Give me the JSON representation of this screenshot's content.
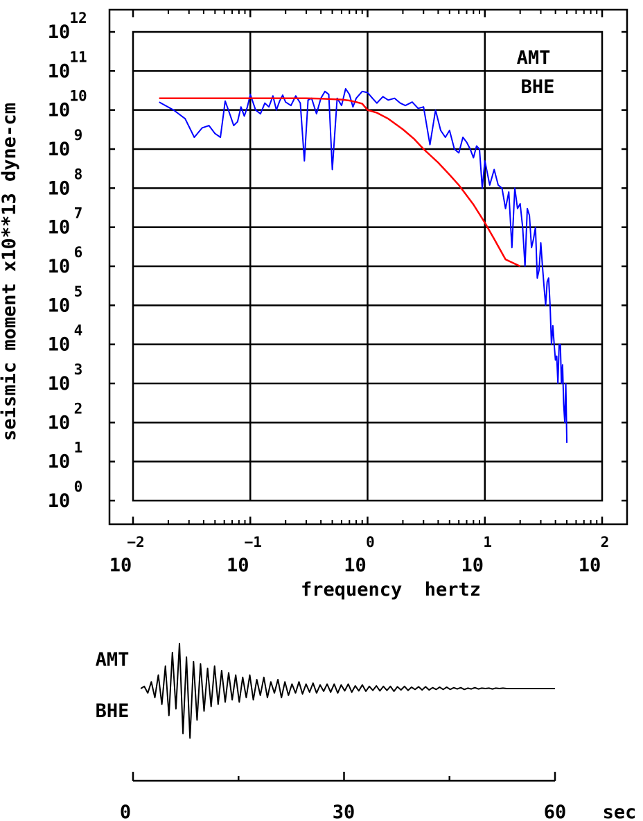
{
  "chart_data": [
    {
      "type": "line",
      "xscale": "log",
      "yscale": "log",
      "xlabel": "frequency  hertz",
      "ylabel": "seismic moment x10**13 dyne-cm",
      "xlim": [
        0.01,
        100
      ],
      "ylim": [
        1,
        1000000000000
      ],
      "grid": true,
      "annotations": [
        "AMT",
        "BHE"
      ],
      "x_ticks": [
        {
          "base": "10",
          "exp": "−2"
        },
        {
          "base": "10",
          "exp": "−1"
        },
        {
          "base": "10",
          "exp": "0"
        },
        {
          "base": "10",
          "exp": "1"
        },
        {
          "base": "10",
          "exp": "2"
        }
      ],
      "y_ticks": [
        {
          "base": "10",
          "exp": "0"
        },
        {
          "base": "10",
          "exp": "1"
        },
        {
          "base": "10",
          "exp": "2"
        },
        {
          "base": "10",
          "exp": "3"
        },
        {
          "base": "10",
          "exp": "4"
        },
        {
          "base": "10",
          "exp": "5"
        },
        {
          "base": "10",
          "exp": "6"
        },
        {
          "base": "10",
          "exp": "7"
        },
        {
          "base": "10",
          "exp": "8"
        },
        {
          "base": "10",
          "exp": "9"
        },
        {
          "base": "10",
          "exp": "10"
        },
        {
          "base": "10",
          "exp": "11"
        },
        {
          "base": "10",
          "exp": "12"
        }
      ],
      "series": [
        {
          "color": "#0000ff",
          "x": [
            0.0167,
            0.0222,
            0.0278,
            0.0333,
            0.0389,
            0.0444,
            0.05,
            0.0556,
            0.0611,
            0.0667,
            0.0722,
            0.0778,
            0.0833,
            0.0889,
            0.0944,
            0.1,
            0.111,
            0.122,
            0.133,
            0.144,
            0.156,
            0.167,
            0.178,
            0.189,
            0.2,
            0.222,
            0.244,
            0.267,
            0.289,
            0.311,
            0.333,
            0.367,
            0.4,
            0.433,
            0.467,
            0.5,
            0.55,
            0.6,
            0.65,
            0.7,
            0.75,
            0.8,
            0.9,
            1.0,
            1.1,
            1.2,
            1.35,
            1.5,
            1.7,
            1.9,
            2.1,
            2.4,
            2.7,
            3.0,
            3.4,
            3.8,
            4.2,
            4.6,
            5.0,
            5.5,
            6.0,
            6.5,
            7.0,
            7.5,
            8.0,
            8.5,
            9.0,
            9.5,
            10.0,
            11.0,
            12.0,
            13.0,
            14.0,
            15.0,
            16.0,
            17.0,
            18.0,
            19.0,
            20.0,
            21.0,
            22.0,
            23.0,
            24.0,
            25.0,
            26.0,
            27.0,
            28.0,
            29.0,
            30.0,
            31.0,
            32.0,
            33.0,
            34.0,
            35.0,
            36.0,
            37.0,
            38.0,
            39.0,
            40.0,
            41.0,
            42.0,
            43.0,
            44.0,
            45.0,
            46.0,
            47.0,
            48.0,
            49.0,
            50.0
          ],
          "y": [
            16000000000.0,
            10000000000.0,
            6000000000.0,
            2000000000.0,
            3500000000.0,
            4000000000.0,
            2500000000.0,
            2000000000.0,
            17000000000.0,
            8000000000.0,
            4000000000.0,
            5000000000.0,
            12000000000.0,
            7000000000.0,
            12000000000.0,
            25000000000.0,
            10000000000.0,
            8000000000.0,
            15000000000.0,
            12000000000.0,
            23000000000.0,
            10000000000.0,
            17000000000.0,
            24000000000.0,
            16000000000.0,
            13000000000.0,
            23000000000.0,
            15000000000.0,
            500000000.0,
            18000000000.0,
            20000000000.0,
            8000000000.0,
            20000000000.0,
            30000000000.0,
            25000000000.0,
            300000000.0,
            20000000000.0,
            13000000000.0,
            35000000000.0,
            25000000000.0,
            12000000000.0,
            20000000000.0,
            30000000000.0,
            28000000000.0,
            20000000000.0,
            15000000000.0,
            22000000000.0,
            18000000000.0,
            20000000000.0,
            15000000000.0,
            13000000000.0,
            16000000000.0,
            11000000000.0,
            12000000000.0,
            1300000000.0,
            10000000000.0,
            3000000000.0,
            2000000000.0,
            3000000000.0,
            1000000000.0,
            800000000.0,
            2000000000.0,
            1500000000.0,
            1000000000.0,
            600000000.0,
            1200000000.0,
            1000000000.0,
            100000000.0,
            500000000.0,
            120000000.0,
            300000000.0,
            120000000.0,
            100000000.0,
            30000000.0,
            80000000.0,
            3000000.0,
            100000000.0,
            30000000.0,
            40000000.0,
            10000000.0,
            1000000.0,
            30000000.0,
            20000000.0,
            3000000.0,
            5000000.0,
            10000000.0,
            500000.0,
            800000.0,
            4000000.0,
            1000000.0,
            300000.0,
            100000.0,
            400000.0,
            500000.0,
            100000.0,
            10000.0,
            30000.0,
            10000.0,
            4000.0,
            5000.0,
            1000.0,
            10000.0,
            10000.0,
            1000.0,
            3000.0,
            300.0,
            100.0,
            1000.0,
            30.0
          ]
        },
        {
          "color": "#ff0000",
          "x": [
            0.0167,
            0.02,
            0.03,
            0.05,
            0.07,
            0.1,
            0.15,
            0.2,
            0.3,
            0.4,
            0.5,
            0.6,
            0.7,
            0.8,
            0.9,
            1.0,
            1.2,
            1.5,
            2.0,
            2.5,
            3.0,
            4.0,
            5.0,
            6.0,
            7.0,
            8.0,
            10.0,
            12.0,
            15.0,
            20.0
          ],
          "y": [
            20000000000.0,
            20000000000.0,
            20000000000.0,
            20000000000.0,
            20000000000.0,
            20000000000.0,
            20000000000.0,
            20000000000.0,
            20000000000.0,
            19500000000.0,
            19000000000.0,
            18500000000.0,
            17500000000.0,
            16000000000.0,
            14500000000.0,
            10000000000.0,
            8500000000.0,
            6000000000.0,
            3200000000.0,
            1800000000.0,
            1000000000.0,
            450000000.0,
            220000000.0,
            120000000.0,
            65000000.0,
            38000000.0,
            13000000.0,
            5000000.0,
            1500000.0,
            1000000.0
          ]
        }
      ]
    },
    {
      "type": "line",
      "xlabel": "sec",
      "annotations": [
        "AMT",
        "BHE"
      ],
      "xlim": [
        0,
        60
      ],
      "x_ticks": [
        "0",
        "30",
        "60"
      ],
      "series": [
        {
          "color": "#000000",
          "x": [
            1.1,
            1.6,
            2.1,
            2.6,
            3.1,
            3.6,
            4.1,
            4.6,
            5.1,
            5.6,
            6.1,
            6.6,
            7.1,
            7.6,
            8.1,
            8.6,
            9.1,
            9.6,
            10.1,
            10.6,
            11.1,
            11.6,
            12.1,
            12.6,
            13.1,
            13.6,
            14.1,
            14.6,
            15.1,
            15.6,
            16.1,
            16.6,
            17.1,
            17.6,
            18.1,
            18.6,
            19.1,
            19.6,
            20.1,
            20.6,
            21.1,
            21.6,
            22.1,
            22.6,
            23.1,
            23.6,
            24.1,
            24.6,
            25.1,
            25.6,
            26.1,
            26.6,
            27.1,
            27.6,
            28.1,
            28.6,
            29.1,
            29.6,
            30.1,
            30.6,
            31.1,
            31.6,
            32.1,
            32.6,
            33.1,
            33.6,
            34.1,
            34.6,
            35.1,
            35.6,
            36.1,
            36.6,
            37.1,
            37.6,
            38.1,
            38.6,
            39.1,
            39.6,
            40.1,
            40.6,
            41.1,
            41.6,
            42.1,
            42.6,
            43.1,
            43.6,
            44.1,
            44.6,
            45.1,
            45.6,
            46.1,
            46.6,
            47.1,
            47.6,
            48.1,
            48.6,
            49.1,
            49.6,
            50.1,
            50.6,
            51.1,
            51.6,
            52.1,
            52.6,
            53.1,
            53.6,
            54.1,
            54.6,
            55.1,
            55.6,
            56.1,
            56.6,
            57.1,
            57.6,
            58.1,
            58.6,
            59.1,
            59.6,
            60.0
          ],
          "y": [
            0.0,
            0.05,
            -0.1,
            0.15,
            -0.2,
            0.3,
            -0.35,
            0.5,
            -0.6,
            0.8,
            -0.45,
            1.0,
            -1.0,
            0.7,
            -1.1,
            0.6,
            -0.7,
            0.55,
            -0.5,
            0.45,
            -0.4,
            0.5,
            -0.35,
            0.4,
            -0.3,
            0.35,
            -0.25,
            0.3,
            -0.3,
            0.25,
            -0.2,
            0.3,
            -0.25,
            0.2,
            -0.15,
            0.25,
            -0.2,
            0.15,
            -0.1,
            0.2,
            -0.2,
            0.15,
            -0.15,
            0.1,
            -0.1,
            0.15,
            -0.12,
            0.1,
            -0.08,
            0.12,
            -0.1,
            0.08,
            -0.06,
            0.1,
            -0.08,
            0.1,
            -0.1,
            0.08,
            -0.05,
            0.1,
            -0.08,
            0.06,
            -0.05,
            0.08,
            -0.06,
            0.05,
            -0.04,
            0.06,
            -0.05,
            0.05,
            -0.04,
            0.05,
            -0.06,
            0.04,
            -0.03,
            0.05,
            -0.04,
            0.03,
            -0.02,
            0.04,
            -0.03,
            0.04,
            -0.03,
            0.02,
            -0.02,
            0.03,
            -0.02,
            0.03,
            -0.02,
            0.02,
            -0.01,
            0.02,
            -0.02,
            0.01,
            -0.01,
            0.02,
            -0.01,
            0.01,
            0.0,
            0.01,
            -0.01,
            0.01,
            0.0,
            0.01,
            0.0,
            0.0,
            0.0,
            0.0,
            0.0,
            0.0,
            0.0,
            0.0,
            0.0,
            0.0,
            0.0,
            0.0,
            0.0,
            0.0,
            0.0
          ]
        }
      ]
    }
  ]
}
